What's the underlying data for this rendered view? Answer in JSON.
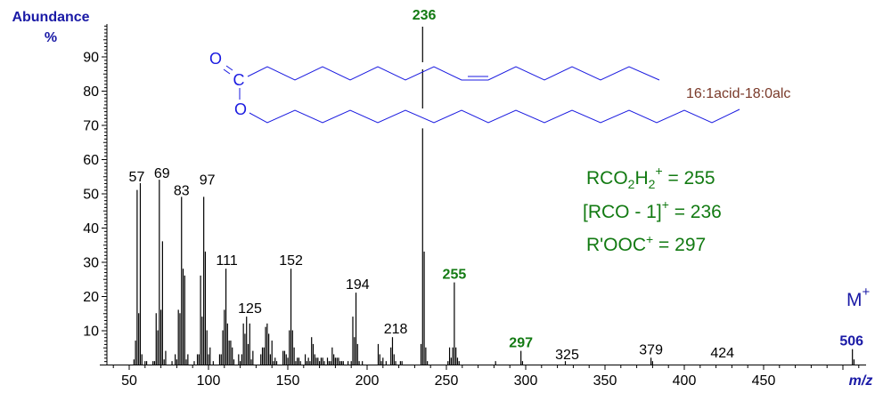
{
  "chart_data": {
    "type": "bar",
    "title": "",
    "compound_label": "16:1acid-18:0alc",
    "xlabel": "m/z",
    "ylabel": "Abundance %",
    "ylabel_line1": "Abundance",
    "ylabel_line2": "%",
    "xlim": [
      35,
      512
    ],
    "ylim": [
      0,
      100
    ],
    "x_ticks": [
      50,
      100,
      150,
      200,
      250,
      300,
      350,
      400,
      450
    ],
    "y_ticks": [
      10,
      20,
      30,
      40,
      50,
      60,
      70,
      80,
      90
    ],
    "grid": false,
    "legend": null,
    "peaks": [
      [
        53,
        1.5
      ],
      [
        54,
        7
      ],
      [
        55,
        51
      ],
      [
        56,
        15
      ],
      [
        57,
        53
      ],
      [
        58,
        3
      ],
      [
        60,
        1
      ],
      [
        61,
        1
      ],
      [
        65,
        1
      ],
      [
        66,
        1
      ],
      [
        67,
        15
      ],
      [
        68,
        10
      ],
      [
        69,
        54
      ],
      [
        70,
        16
      ],
      [
        71,
        36
      ],
      [
        72,
        1.5
      ],
      [
        73,
        4
      ],
      [
        77,
        1
      ],
      [
        79,
        3
      ],
      [
        80,
        1.5
      ],
      [
        81,
        16
      ],
      [
        82,
        15
      ],
      [
        83,
        49
      ],
      [
        84,
        28
      ],
      [
        85,
        26
      ],
      [
        86,
        1.5
      ],
      [
        87,
        3
      ],
      [
        91,
        1
      ],
      [
        93,
        3
      ],
      [
        94,
        3
      ],
      [
        95,
        26
      ],
      [
        96,
        14
      ],
      [
        97,
        49
      ],
      [
        98,
        33
      ],
      [
        99,
        10
      ],
      [
        100,
        3
      ],
      [
        101,
        5
      ],
      [
        103,
        1
      ],
      [
        107,
        3
      ],
      [
        108,
        3
      ],
      [
        109,
        10
      ],
      [
        110,
        16
      ],
      [
        111,
        28
      ],
      [
        112,
        12
      ],
      [
        113,
        7
      ],
      [
        114,
        7
      ],
      [
        115,
        5
      ],
      [
        116,
        1.5
      ],
      [
        119,
        3
      ],
      [
        120,
        1
      ],
      [
        121,
        3
      ],
      [
        122,
        12
      ],
      [
        123,
        9
      ],
      [
        124,
        14
      ],
      [
        125,
        6
      ],
      [
        126,
        12
      ],
      [
        127,
        1.5
      ],
      [
        128,
        4
      ],
      [
        133,
        3
      ],
      [
        134,
        5
      ],
      [
        135,
        5
      ],
      [
        136,
        11
      ],
      [
        137,
        12
      ],
      [
        138,
        9
      ],
      [
        139,
        3
      ],
      [
        140,
        7
      ],
      [
        141,
        1
      ],
      [
        142,
        2
      ],
      [
        143,
        1
      ],
      [
        147,
        4
      ],
      [
        148,
        4
      ],
      [
        149,
        3
      ],
      [
        150,
        2
      ],
      [
        151,
        10
      ],
      [
        152,
        28
      ],
      [
        153,
        10
      ],
      [
        154,
        5
      ],
      [
        155,
        1
      ],
      [
        156,
        2
      ],
      [
        157,
        2
      ],
      [
        158,
        1
      ],
      [
        161,
        3
      ],
      [
        162,
        1
      ],
      [
        163,
        2
      ],
      [
        164,
        1
      ],
      [
        165,
        8
      ],
      [
        166,
        6
      ],
      [
        167,
        3
      ],
      [
        168,
        2
      ],
      [
        169,
        2
      ],
      [
        170,
        1
      ],
      [
        171,
        2
      ],
      [
        172,
        2
      ],
      [
        173,
        1
      ],
      [
        175,
        2
      ],
      [
        176,
        1
      ],
      [
        177,
        1
      ],
      [
        178,
        5
      ],
      [
        179,
        3
      ],
      [
        180,
        2
      ],
      [
        181,
        2
      ],
      [
        182,
        2
      ],
      [
        183,
        1
      ],
      [
        184,
        1
      ],
      [
        185,
        1
      ],
      [
        188,
        1
      ],
      [
        190,
        1
      ],
      [
        191,
        14
      ],
      [
        192,
        8
      ],
      [
        193,
        21
      ],
      [
        194,
        6
      ],
      [
        195,
        1
      ],
      [
        197,
        1
      ],
      [
        207,
        6
      ],
      [
        208,
        3
      ],
      [
        209,
        1
      ],
      [
        210,
        2
      ],
      [
        212,
        1
      ],
      [
        215,
        5
      ],
      [
        216,
        8
      ],
      [
        217,
        3
      ],
      [
        218,
        1
      ],
      [
        221,
        1
      ],
      [
        222,
        1
      ],
      [
        234,
        6
      ],
      [
        235,
        69
      ],
      [
        236,
        33
      ],
      [
        237,
        5
      ],
      [
        238,
        1
      ],
      [
        251,
        1
      ],
      [
        252,
        5
      ],
      [
        253,
        2
      ],
      [
        254,
        5
      ],
      [
        255,
        24
      ],
      [
        256,
        5
      ],
      [
        257,
        2
      ],
      [
        258,
        1
      ],
      [
        281,
        1
      ],
      [
        297,
        4
      ],
      [
        298,
        1
      ],
      [
        325,
        1
      ],
      [
        379,
        2
      ],
      [
        380,
        1
      ],
      [
        506,
        4.5
      ],
      [
        507,
        1.5
      ]
    ],
    "peak_labels": [
      {
        "mz": "57",
        "x": 57,
        "y": 53,
        "style": "plain"
      },
      {
        "mz": "69",
        "x": 69,
        "y": 54,
        "style": "plain"
      },
      {
        "mz": "83",
        "x": 83,
        "y": 49,
        "style": "plain"
      },
      {
        "mz": "97",
        "x": 97,
        "y": 49,
        "style": "plain"
      },
      {
        "mz": "111",
        "x": 111,
        "y": 28,
        "style": "plain"
      },
      {
        "mz": "125",
        "x": 125,
        "y": 14,
        "style": "plain"
      },
      {
        "mz": "152",
        "x": 152,
        "y": 28,
        "style": "plain"
      },
      {
        "mz": "194",
        "x": 194,
        "y": 21,
        "style": "plain"
      },
      {
        "mz": "218",
        "x": 218,
        "y": 8,
        "style": "plain"
      },
      {
        "mz": "236",
        "x": 236,
        "y": 100,
        "style": "green"
      },
      {
        "mz": "255",
        "x": 255,
        "y": 24,
        "style": "green"
      },
      {
        "mz": "297",
        "x": 297,
        "y": 4,
        "style": "green"
      },
      {
        "mz": "325",
        "x": 325,
        "y": 1,
        "style": "plain"
      },
      {
        "mz": "379",
        "x": 379,
        "y": 2,
        "style": "plain"
      },
      {
        "mz": "424",
        "x": 424,
        "y": 1,
        "style": "plain"
      },
      {
        "mz": "506",
        "x": 506,
        "y": 4.5,
        "style": "blue"
      }
    ],
    "annotations": [
      {
        "id": "rco2h2",
        "text_main": "RCO",
        "sub1": "2",
        "text_mid": "H",
        "sub2": "2",
        "sup": "+",
        "tail": " = 255"
      },
      {
        "id": "rco1",
        "text_main": "[RCO - 1]",
        "sup": "+",
        "tail": " = 236"
      },
      {
        "id": "rooc",
        "text_main": "R'OOC",
        "sup": "+",
        "tail": " = 297"
      }
    ],
    "molecular_ion": {
      "label": "M",
      "sup": "+"
    },
    "structure_atoms": {
      "o_double": "O",
      "c": "C",
      "o_ester": "O"
    }
  }
}
